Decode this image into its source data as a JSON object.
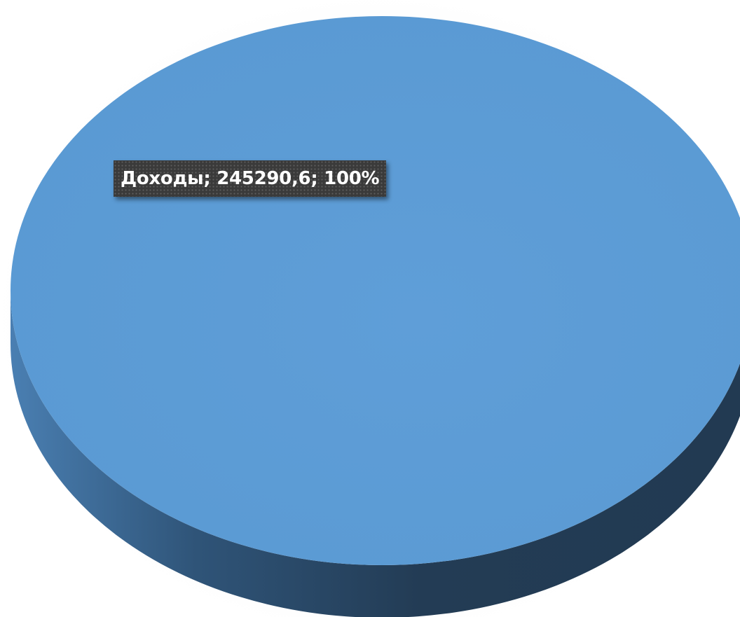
{
  "chart_data": {
    "type": "pie",
    "categories": [
      "Доходы"
    ],
    "values": [
      245290.6
    ],
    "percent": [
      100
    ],
    "colors": [
      "#5b9bd5"
    ],
    "data_labels": [
      "Доходы; 245290,6; 100%"
    ],
    "title": "",
    "legend": "none",
    "style": "3d"
  }
}
